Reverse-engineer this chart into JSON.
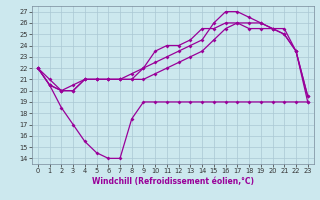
{
  "xlabel": "Windchill (Refroidissement éolien,°C)",
  "background_color": "#cce8ee",
  "grid_color": "#aac8d4",
  "line_color": "#990099",
  "hours": [
    0,
    1,
    2,
    3,
    4,
    5,
    6,
    7,
    8,
    9,
    10,
    11,
    12,
    13,
    14,
    15,
    16,
    17,
    18,
    19,
    20,
    21,
    22,
    23
  ],
  "windchill_y": [
    22,
    20.5,
    18.5,
    17,
    15.5,
    14.5,
    14,
    14,
    17.5,
    19,
    19,
    19,
    19,
    19,
    19,
    19,
    19,
    19,
    19,
    19,
    19,
    19,
    19,
    19
  ],
  "realtemp_y": [
    22,
    20.5,
    20,
    20.5,
    21,
    21,
    21,
    21,
    21,
    22,
    22.5,
    23,
    23.5,
    24,
    24.5,
    26,
    27,
    27,
    26.5,
    26,
    25.5,
    25.5,
    23.5,
    19.5
  ],
  "apparent_y": [
    22,
    21,
    20,
    20,
    21,
    21,
    21,
    21,
    21.5,
    22,
    23.5,
    24,
    24,
    24.5,
    25.5,
    25.5,
    26,
    26,
    25.5,
    25.5,
    25.5,
    25,
    23.5,
    19
  ],
  "flat_y": [
    22,
    20.5,
    20,
    20,
    21,
    21,
    21,
    21,
    21,
    21,
    21.5,
    22,
    22.5,
    23,
    23.5,
    24.5,
    25.5,
    26,
    26,
    26,
    25.5,
    25,
    23.5,
    19.5
  ],
  "ylim": [
    13.5,
    27.5
  ],
  "yticks": [
    14,
    15,
    16,
    17,
    18,
    19,
    20,
    21,
    22,
    23,
    24,
    25,
    26,
    27
  ],
  "xlim": [
    -0.5,
    23.5
  ],
  "xlabel_fontsize": 5.5,
  "tick_fontsize": 4.8
}
